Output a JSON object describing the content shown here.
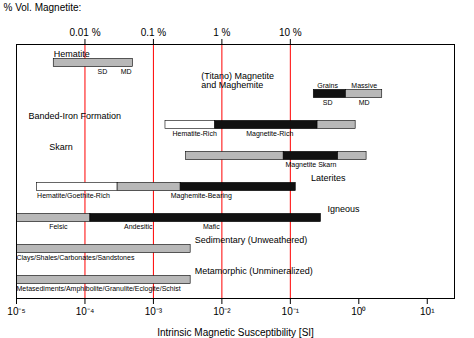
{
  "chart_data": {
    "type": "bar",
    "orientation": "horizontal",
    "log": "x",
    "xlabel": "Intrinsic Magnetic Susceptibility [SI]",
    "xlim": [
      1e-05,
      25
    ],
    "xticks": [
      {
        "value": 1e-05,
        "label": "10⁻⁵"
      },
      {
        "value": 0.0001,
        "label": "10⁻⁴"
      },
      {
        "value": 0.001,
        "label": "10⁻³"
      },
      {
        "value": 0.01,
        "label": "10⁻²"
      },
      {
        "value": 0.1,
        "label": "10⁻¹"
      },
      {
        "value": 1,
        "label": "10⁰"
      },
      {
        "value": 10,
        "label": "10¹"
      }
    ],
    "x2label": "% Vol. Magnetite:",
    "x2ticks": [
      {
        "value": 0.0001,
        "label": "0.01 %"
      },
      {
        "value": 0.001,
        "label": "0.1 %"
      },
      {
        "value": 0.01,
        "label": "1 %"
      },
      {
        "value": 0.1,
        "label": "10 %"
      }
    ],
    "reference_lines": [
      {
        "x": 0.0001,
        "color": "red",
        "line_style": "dashed"
      },
      {
        "x": 0.001,
        "color": "red",
        "line_style": "dashed"
      },
      {
        "x": 0.01,
        "color": "red",
        "line_style": "dashed"
      },
      {
        "x": 0.1,
        "color": "red",
        "line_style": "dashed"
      }
    ],
    "rows": [
      {
        "name": "Hematite",
        "name_x": 3.5e-05,
        "segments": [
          {
            "x0": 3.5e-05,
            "x1": 0.0005,
            "color": "#b8b8b8"
          }
        ],
        "labels": [
          {
            "text": "SD",
            "x": 0.00018,
            "align": "center",
            "above": false
          },
          {
            "text": "MD",
            "x": 0.0004,
            "align": "center",
            "above": false
          }
        ]
      },
      {
        "name": "(Titano) Magnetite\nand Maghemite",
        "name_x": 0.005,
        "segments": [
          {
            "x0": 0.22,
            "x1": 0.65,
            "color": "#111111"
          },
          {
            "x0": 0.65,
            "x1": 2.2,
            "color": "#b8b8b8"
          }
        ],
        "labels": [
          {
            "text": "Grains",
            "x": 0.35,
            "align": "center",
            "above": true
          },
          {
            "text": "Massive",
            "x": 1.2,
            "align": "center",
            "above": true
          },
          {
            "text": "SD",
            "x": 0.35,
            "align": "center",
            "above": false
          },
          {
            "text": "MD",
            "x": 1.2,
            "align": "center",
            "above": false
          }
        ]
      },
      {
        "name": "Banded-Iron Formation",
        "name_x": 1.5e-05,
        "segments": [
          {
            "x0": 0.0015,
            "x1": 0.008,
            "color": "#ffffff"
          },
          {
            "x0": 0.008,
            "x1": 0.25,
            "color": "#111111"
          },
          {
            "x0": 0.25,
            "x1": 0.9,
            "color": "#b8b8b8"
          }
        ],
        "labels": [
          {
            "text": "Hematite-Rich",
            "x": 0.004,
            "align": "center",
            "above": false
          },
          {
            "text": "Magnetite-Rich",
            "x": 0.05,
            "align": "center",
            "above": false
          }
        ]
      },
      {
        "name": "Skarn",
        "name_x": 3e-05,
        "segments": [
          {
            "x0": 0.003,
            "x1": 0.08,
            "color": "#b8b8b8"
          },
          {
            "x0": 0.08,
            "x1": 0.5,
            "color": "#111111"
          },
          {
            "x0": 0.5,
            "x1": 1.3,
            "color": "#b8b8b8"
          }
        ],
        "labels": [
          {
            "text": "Magnetite Skarn",
            "x": 0.2,
            "align": "center",
            "above": false
          }
        ]
      },
      {
        "name": "Laterites",
        "name_x": 0.2,
        "segments": [
          {
            "x0": 2e-05,
            "x1": 0.0003,
            "color": "#ffffff"
          },
          {
            "x0": 0.0003,
            "x1": 0.0025,
            "color": "#b8b8b8"
          },
          {
            "x0": 0.0025,
            "x1": 0.12,
            "color": "#111111"
          }
        ],
        "labels": [
          {
            "text": "Hematite/Goethite-Rich",
            "x": 2e-05,
            "align": "left",
            "above": false
          },
          {
            "text": "Maghemite-Bearing",
            "x": 0.005,
            "align": "center",
            "above": false
          }
        ]
      },
      {
        "name": "Igneous",
        "name_x": 0.35,
        "segments": [
          {
            "x0": 1e-05,
            "x1": 0.00012,
            "color": "#b8b8b8"
          },
          {
            "x0": 0.00012,
            "x1": 0.28,
            "color": "#111111"
          }
        ],
        "labels": [
          {
            "text": "Felsic",
            "x": 3e-05,
            "align": "left",
            "above": false
          },
          {
            "text": "Andesitic",
            "x": 0.0006,
            "align": "center",
            "above": false
          },
          {
            "text": "Mafic",
            "x": 0.007,
            "align": "center",
            "above": false
          }
        ]
      },
      {
        "name": "Sedimentary (Unweathered)",
        "name_x": 0.004,
        "segments": [
          {
            "x0": 1e-05,
            "x1": 0.0035,
            "color": "#b8b8b8"
          }
        ],
        "labels": [
          {
            "text": "Clays/Shales/Carbonates/Sandstones",
            "x": 1e-05,
            "align": "left",
            "above": false
          }
        ]
      },
      {
        "name": "Metamorphic (Unmineralized)",
        "name_x": 0.004,
        "segments": [
          {
            "x0": 1e-05,
            "x1": 0.0035,
            "color": "#b8b8b8"
          }
        ],
        "labels": [
          {
            "text": "Metasediments/Amphibolite/Granulite/Eclogite/Schist",
            "x": 1e-05,
            "align": "left",
            "above": false
          }
        ]
      }
    ]
  }
}
